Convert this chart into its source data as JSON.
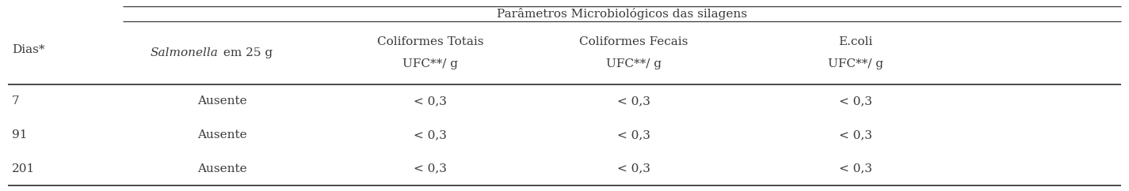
{
  "title": "Parâmetros Microbiológicos das silagens",
  "col0_header": "Dias*",
  "col1_header_italic": "Salmonella",
  "col1_header_normal": " em 25 g",
  "col2_header_line1": "Coliformes Totais",
  "col2_header_line2": "UFC**/ g",
  "col3_header_line1": "Coliformes Fecais",
  "col3_header_line2": "UFC**/ g",
  "col4_header_line1": "E.coli",
  "col4_header_line2": "UFC**/ g",
  "rows": [
    [
      "7",
      "Ausente",
      "< 0,3",
      "< 0,3",
      "< 0,3"
    ],
    [
      "91",
      "Ausente",
      "< 0,3",
      "< 0,3",
      "< 0,3"
    ],
    [
      "201",
      "Ausente",
      "< 0,3",
      "< 0,3",
      "< 0,3"
    ]
  ],
  "bg_color": "#ffffff",
  "text_color": "#3a3a3a",
  "font_size": 11.0,
  "header_font_size": 11.0,
  "figwidth": 14.25,
  "figheight": 2.42,
  "dpi": 100
}
